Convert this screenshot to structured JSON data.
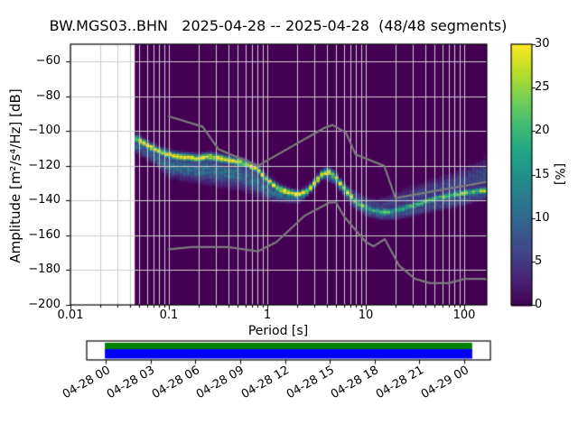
{
  "window": {
    "title": "BW.MGS03..BHN   2025-04-28 -- 2025-04-28  (48/48 segments)"
  },
  "chart_data": {
    "type": "heatmap",
    "subtype": "ppsd-probabilistic-power-spectral-density",
    "title": "BW.MGS03..BHN   2025-04-28 -- 2025-04-28  (48/48 segments)",
    "station": "BW.MGS03..BHN",
    "date_range": "2025-04-28 -- 2025-04-28",
    "segments": "48/48",
    "xlabel": "Period [s]",
    "ylabel": "Amplitude [m²/s⁴/Hz] [dB]",
    "xscale": "log",
    "xlim": [
      0.01,
      170
    ],
    "ylim": [
      -200,
      -50
    ],
    "grid": true,
    "xticks": [
      0.01,
      0.1,
      1,
      10,
      100
    ],
    "xtick_labels": [
      "0.01",
      "0.1",
      "1",
      "10",
      "100"
    ],
    "yticks": [
      -60,
      -80,
      -100,
      -120,
      -140,
      -160,
      -180,
      -200
    ],
    "ytick_labels": [
      "−60",
      "−80",
      "−100",
      "−120",
      "−140",
      "−160",
      "−180",
      "−200"
    ],
    "background_color": "#440154",
    "colorbar": {
      "label": "[%]",
      "cmap": "viridis",
      "vmin": 0,
      "vmax": 30,
      "ticks": [
        0,
        5,
        10,
        15,
        20,
        25,
        30
      ],
      "tick_labels": [
        "0",
        "5",
        "10",
        "15",
        "20",
        "25",
        "30"
      ]
    },
    "psd": {
      "data_period_range_s": [
        0.045,
        170
      ],
      "mode_curve": [
        [
          0.046,
          -104
        ],
        [
          0.055,
          -106.5
        ],
        [
          0.07,
          -110
        ],
        [
          0.09,
          -112.5
        ],
        [
          0.11,
          -114
        ],
        [
          0.15,
          -115
        ],
        [
          0.2,
          -115.5
        ],
        [
          0.26,
          -114.5
        ],
        [
          0.33,
          -115.5
        ],
        [
          0.45,
          -117
        ],
        [
          0.6,
          -118.5
        ],
        [
          0.8,
          -122
        ],
        [
          1.0,
          -128
        ],
        [
          1.3,
          -133
        ],
        [
          1.7,
          -135.5
        ],
        [
          2.1,
          -136.5
        ],
        [
          2.6,
          -134
        ],
        [
          3.1,
          -129
        ],
        [
          3.7,
          -124
        ],
        [
          4.3,
          -123.5
        ],
        [
          5.0,
          -126.5
        ],
        [
          6.0,
          -132.5
        ],
        [
          7.5,
          -139
        ],
        [
          9.0,
          -142.5
        ],
        [
          11,
          -145
        ],
        [
          14,
          -146.5
        ],
        [
          18,
          -146
        ],
        [
          25,
          -144
        ],
        [
          35,
          -141.5
        ],
        [
          50,
          -139
        ],
        [
          70,
          -137
        ],
        [
          100,
          -135.5
        ],
        [
          140,
          -134.5
        ],
        [
          170,
          -134
        ]
      ],
      "band_extent": [
        [
          0.046,
          -112,
          -102,
          30
        ],
        [
          0.07,
          -118,
          -108,
          30
        ],
        [
          0.1,
          -126,
          -112,
          30
        ],
        [
          0.2,
          -129,
          -113,
          30
        ],
        [
          0.35,
          -131,
          -114,
          30
        ],
        [
          0.6,
          -133,
          -117,
          30
        ],
        [
          1.0,
          -139,
          -126,
          30
        ],
        [
          1.6,
          -141,
          -133,
          30
        ],
        [
          2.2,
          -141,
          -134,
          28
        ],
        [
          3.0,
          -133,
          -127,
          30
        ],
        [
          3.7,
          -127,
          -121,
          30
        ],
        [
          5.0,
          -131,
          -124,
          30
        ],
        [
          7.0,
          -142,
          -133,
          26
        ],
        [
          10,
          -149,
          -138,
          22
        ],
        [
          14,
          -151,
          -139,
          20
        ],
        [
          20,
          -151,
          -136,
          20
        ],
        [
          30,
          -149,
          -132,
          20
        ],
        [
          50,
          -146,
          -128,
          20
        ],
        [
          80,
          -144,
          -124,
          22
        ],
        [
          120,
          -141,
          -120,
          22
        ],
        [
          170,
          -139,
          -116,
          24
        ]
      ]
    },
    "noise_models": {
      "color": "#7b7b7b",
      "nhnm": [
        [
          0.1,
          -91.5
        ],
        [
          0.22,
          -97.4
        ],
        [
          0.32,
          -110.5
        ],
        [
          0.8,
          -120.0
        ],
        [
          3.8,
          -98.1
        ],
        [
          4.6,
          -96.5
        ],
        [
          6.3,
          -101.0
        ],
        [
          7.9,
          -113.5
        ],
        [
          15.4,
          -120.0
        ],
        [
          20.0,
          -138.5
        ],
        [
          170,
          -129.2
        ]
      ],
      "nlnm": [
        [
          0.1,
          -168.0
        ],
        [
          0.17,
          -166.7
        ],
        [
          0.4,
          -166.7
        ],
        [
          0.8,
          -169.2
        ],
        [
          1.24,
          -163.8
        ],
        [
          2.4,
          -148.6
        ],
        [
          4.3,
          -141.1
        ],
        [
          5.0,
          -141.1
        ],
        [
          6.0,
          -149.0
        ],
        [
          10.0,
          -163.8
        ],
        [
          12.0,
          -166.3
        ],
        [
          15.6,
          -162.1
        ],
        [
          21.9,
          -177.5
        ],
        [
          31.6,
          -185.0
        ],
        [
          45.0,
          -187.5
        ],
        [
          70.0,
          -187.5
        ],
        [
          101.0,
          -185.0
        ],
        [
          154.0,
          -185.0
        ],
        [
          170,
          -185.3
        ]
      ]
    }
  },
  "timeline": {
    "tick_labels": [
      "04-28 00",
      "04-28 03",
      "04-28 06",
      "04-28 09",
      "04-28 12",
      "04-28 15",
      "04-28 18",
      "04-28 21",
      "04-29 00"
    ],
    "coverage": {
      "start_frac": 0.045,
      "end_frac": 0.955,
      "top_bar_color": "#008000",
      "bottom_bar_color": "#0000ff"
    }
  }
}
